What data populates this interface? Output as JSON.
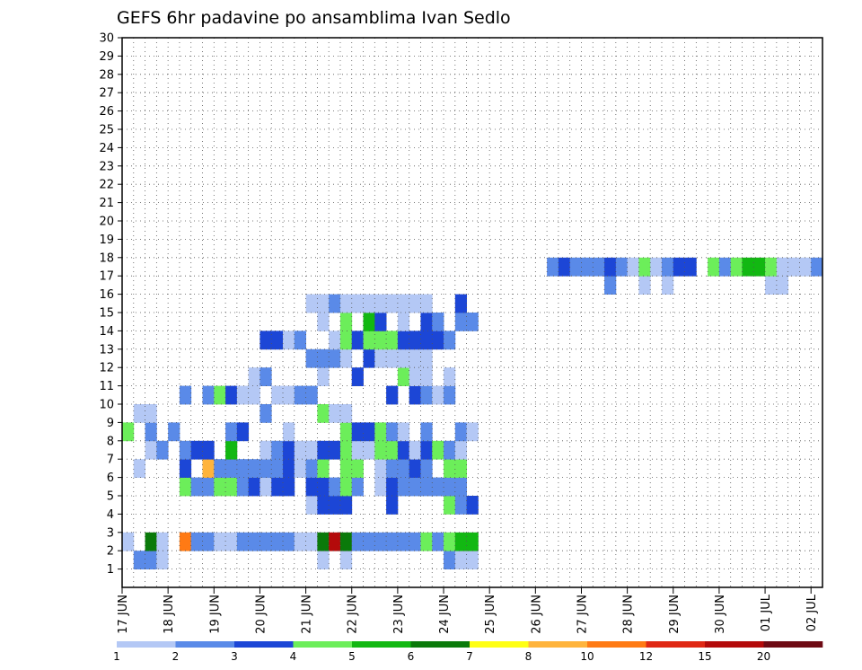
{
  "chart_data": {
    "type": "heatmap",
    "title": "GEFS 6hr padavine po ansamblima Ivan Sedlo",
    "xlabel": "",
    "ylabel": "",
    "x_tick_labels": [
      "17 JUN",
      "18 JUN",
      "19 JUN",
      "20 JUN",
      "21 JUN",
      "22 JUN",
      "23 JUN",
      "24 JUN",
      "25 JUN",
      "26 JUN",
      "27 JUN",
      "28 JUN",
      "29 JUN",
      "30 JUN",
      "01 JUL",
      "02 JUL"
    ],
    "y_tick_labels": [
      "1",
      "2",
      "3",
      "4",
      "5",
      "6",
      "7",
      "8",
      "9",
      "10",
      "11",
      "12",
      "13",
      "14",
      "15",
      "16",
      "17",
      "18",
      "19",
      "20",
      "21",
      "22",
      "23",
      "24",
      "25",
      "26",
      "27",
      "28",
      "29",
      "30"
    ],
    "x_unit": "6hr steps from 17 JUN 00Z",
    "xlim": [
      0,
      61
    ],
    "ylim": [
      0,
      30
    ],
    "grid": true,
    "legend_position": "bottom",
    "legend": {
      "labels": [
        "1",
        "2",
        "3",
        "4",
        "5",
        "6",
        "7",
        "8",
        "10",
        "12",
        "15",
        "20"
      ],
      "colors": [
        "#b4c8f5",
        "#5a8ae8",
        "#1c46d6",
        "#6cee5a",
        "#12b812",
        "#0a7a0a",
        "#ffff14",
        "#ffb43c",
        "#ff7a14",
        "#e02814",
        "#b40a0a",
        "#6e0a14"
      ]
    },
    "cells": [
      [
        1,
        1,
        2
      ],
      [
        1,
        2,
        2
      ],
      [
        1,
        3,
        1
      ],
      [
        1,
        17,
        1
      ],
      [
        1,
        19,
        1
      ],
      [
        1,
        28,
        2
      ],
      [
        1,
        29,
        1
      ],
      [
        1,
        30,
        1
      ],
      [
        2,
        0,
        1
      ],
      [
        2,
        2,
        6
      ],
      [
        2,
        3,
        1
      ],
      [
        2,
        5,
        9
      ],
      [
        2,
        6,
        2
      ],
      [
        2,
        7,
        2
      ],
      [
        2,
        8,
        1
      ],
      [
        2,
        9,
        1
      ],
      [
        2,
        10,
        2
      ],
      [
        2,
        11,
        2
      ],
      [
        2,
        12,
        2
      ],
      [
        2,
        13,
        2
      ],
      [
        2,
        14,
        2
      ],
      [
        2,
        15,
        1
      ],
      [
        2,
        16,
        1
      ],
      [
        2,
        17,
        6
      ],
      [
        2,
        18,
        11
      ],
      [
        2,
        19,
        6
      ],
      [
        2,
        20,
        2
      ],
      [
        2,
        21,
        2
      ],
      [
        2,
        22,
        2
      ],
      [
        2,
        23,
        2
      ],
      [
        2,
        24,
        2
      ],
      [
        2,
        25,
        2
      ],
      [
        2,
        26,
        4
      ],
      [
        2,
        27,
        2
      ],
      [
        2,
        28,
        4
      ],
      [
        2,
        29,
        5
      ],
      [
        2,
        30,
        5
      ],
      [
        4,
        16,
        1
      ],
      [
        4,
        17,
        3
      ],
      [
        4,
        18,
        3
      ],
      [
        4,
        19,
        3
      ],
      [
        4,
        23,
        3
      ],
      [
        4,
        28,
        4
      ],
      [
        4,
        29,
        2
      ],
      [
        4,
        30,
        3
      ],
      [
        5,
        5,
        4
      ],
      [
        5,
        6,
        2
      ],
      [
        5,
        7,
        2
      ],
      [
        5,
        8,
        4
      ],
      [
        5,
        9,
        4
      ],
      [
        5,
        10,
        2
      ],
      [
        5,
        11,
        3
      ],
      [
        5,
        12,
        1
      ],
      [
        5,
        13,
        3
      ],
      [
        5,
        14,
        3
      ],
      [
        5,
        16,
        3
      ],
      [
        5,
        17,
        3
      ],
      [
        5,
        18,
        2
      ],
      [
        5,
        19,
        4
      ],
      [
        5,
        20,
        2
      ],
      [
        5,
        22,
        1
      ],
      [
        5,
        23,
        3
      ],
      [
        5,
        24,
        2
      ],
      [
        5,
        25,
        2
      ],
      [
        5,
        26,
        2
      ],
      [
        5,
        27,
        2
      ],
      [
        5,
        28,
        2
      ],
      [
        5,
        29,
        2
      ],
      [
        6,
        1,
        1
      ],
      [
        6,
        5,
        3
      ],
      [
        6,
        7,
        8
      ],
      [
        6,
        8,
        2
      ],
      [
        6,
        9,
        2
      ],
      [
        6,
        10,
        2
      ],
      [
        6,
        11,
        2
      ],
      [
        6,
        12,
        2
      ],
      [
        6,
        13,
        2
      ],
      [
        6,
        14,
        3
      ],
      [
        6,
        15,
        1
      ],
      [
        6,
        16,
        2
      ],
      [
        6,
        17,
        4
      ],
      [
        6,
        19,
        4
      ],
      [
        6,
        20,
        4
      ],
      [
        6,
        22,
        1
      ],
      [
        6,
        23,
        2
      ],
      [
        6,
        24,
        2
      ],
      [
        6,
        25,
        3
      ],
      [
        6,
        26,
        2
      ],
      [
        6,
        28,
        4
      ],
      [
        6,
        29,
        4
      ],
      [
        7,
        2,
        1
      ],
      [
        7,
        3,
        2
      ],
      [
        7,
        5,
        2
      ],
      [
        7,
        6,
        3
      ],
      [
        7,
        7,
        3
      ],
      [
        7,
        9,
        5
      ],
      [
        7,
        12,
        1
      ],
      [
        7,
        13,
        2
      ],
      [
        7,
        14,
        3
      ],
      [
        7,
        15,
        1
      ],
      [
        7,
        16,
        1
      ],
      [
        7,
        17,
        3
      ],
      [
        7,
        18,
        3
      ],
      [
        7,
        19,
        4
      ],
      [
        7,
        20,
        1
      ],
      [
        7,
        21,
        1
      ],
      [
        7,
        22,
        4
      ],
      [
        7,
        23,
        4
      ],
      [
        7,
        24,
        3
      ],
      [
        7,
        25,
        1
      ],
      [
        7,
        26,
        3
      ],
      [
        7,
        27,
        4
      ],
      [
        7,
        28,
        2
      ],
      [
        7,
        29,
        1
      ],
      [
        8,
        0,
        4
      ],
      [
        8,
        2,
        2
      ],
      [
        8,
        4,
        2
      ],
      [
        8,
        9,
        2
      ],
      [
        8,
        10,
        3
      ],
      [
        8,
        14,
        1
      ],
      [
        8,
        19,
        4
      ],
      [
        8,
        20,
        3
      ],
      [
        8,
        21,
        3
      ],
      [
        8,
        22,
        4
      ],
      [
        8,
        23,
        2
      ],
      [
        8,
        24,
        1
      ],
      [
        8,
        26,
        2
      ],
      [
        8,
        29,
        2
      ],
      [
        8,
        30,
        1
      ],
      [
        9,
        1,
        1
      ],
      [
        9,
        2,
        1
      ],
      [
        9,
        12,
        2
      ],
      [
        9,
        17,
        4
      ],
      [
        9,
        18,
        1
      ],
      [
        9,
        19,
        1
      ],
      [
        10,
        5,
        2
      ],
      [
        10,
        7,
        2
      ],
      [
        10,
        8,
        4
      ],
      [
        10,
        9,
        3
      ],
      [
        10,
        10,
        1
      ],
      [
        10,
        11,
        1
      ],
      [
        10,
        13,
        1
      ],
      [
        10,
        14,
        1
      ],
      [
        10,
        15,
        2
      ],
      [
        10,
        16,
        2
      ],
      [
        10,
        23,
        3
      ],
      [
        10,
        25,
        3
      ],
      [
        10,
        26,
        2
      ],
      [
        10,
        27,
        1
      ],
      [
        10,
        28,
        2
      ],
      [
        11,
        11,
        1
      ],
      [
        11,
        12,
        2
      ],
      [
        11,
        17,
        1
      ],
      [
        11,
        20,
        3
      ],
      [
        11,
        24,
        4
      ],
      [
        11,
        25,
        1
      ],
      [
        11,
        26,
        1
      ],
      [
        11,
        28,
        1
      ],
      [
        12,
        16,
        2
      ],
      [
        12,
        17,
        2
      ],
      [
        12,
        18,
        2
      ],
      [
        12,
        19,
        1
      ],
      [
        12,
        21,
        3
      ],
      [
        12,
        22,
        1
      ],
      [
        12,
        23,
        1
      ],
      [
        12,
        24,
        1
      ],
      [
        12,
        25,
        1
      ],
      [
        12,
        26,
        1
      ],
      [
        13,
        12,
        3
      ],
      [
        13,
        13,
        3
      ],
      [
        13,
        14,
        1
      ],
      [
        13,
        15,
        2
      ],
      [
        13,
        18,
        1
      ],
      [
        13,
        19,
        4
      ],
      [
        13,
        20,
        3
      ],
      [
        13,
        21,
        4
      ],
      [
        13,
        22,
        4
      ],
      [
        13,
        23,
        4
      ],
      [
        13,
        24,
        3
      ],
      [
        13,
        25,
        3
      ],
      [
        13,
        26,
        3
      ],
      [
        13,
        27,
        3
      ],
      [
        13,
        28,
        2
      ],
      [
        14,
        17,
        1
      ],
      [
        14,
        19,
        4
      ],
      [
        14,
        21,
        5
      ],
      [
        14,
        22,
        3
      ],
      [
        14,
        24,
        1
      ],
      [
        14,
        26,
        3
      ],
      [
        14,
        27,
        2
      ],
      [
        14,
        29,
        2
      ],
      [
        14,
        30,
        2
      ],
      [
        15,
        16,
        1
      ],
      [
        15,
        17,
        1
      ],
      [
        15,
        18,
        2
      ],
      [
        15,
        19,
        1
      ],
      [
        15,
        20,
        1
      ],
      [
        15,
        21,
        1
      ],
      [
        15,
        22,
        1
      ],
      [
        15,
        23,
        1
      ],
      [
        15,
        24,
        1
      ],
      [
        15,
        25,
        1
      ],
      [
        15,
        26,
        1
      ],
      [
        15,
        29,
        3
      ],
      [
        16,
        42,
        2
      ],
      [
        16,
        45,
        1
      ],
      [
        16,
        47,
        1
      ],
      [
        16,
        56,
        1
      ],
      [
        16,
        57,
        1
      ],
      [
        17,
        37,
        2
      ],
      [
        17,
        38,
        3
      ],
      [
        17,
        39,
        2
      ],
      [
        17,
        40,
        2
      ],
      [
        17,
        41,
        2
      ],
      [
        17,
        42,
        3
      ],
      [
        17,
        43,
        2
      ],
      [
        17,
        44,
        1
      ],
      [
        17,
        45,
        4
      ],
      [
        17,
        46,
        1
      ],
      [
        17,
        47,
        2
      ],
      [
        17,
        48,
        3
      ],
      [
        17,
        49,
        3
      ],
      [
        17,
        51,
        4
      ],
      [
        17,
        52,
        2
      ],
      [
        17,
        53,
        4
      ],
      [
        17,
        54,
        5
      ],
      [
        17,
        55,
        5
      ],
      [
        17,
        56,
        4
      ],
      [
        17,
        57,
        1
      ],
      [
        17,
        58,
        1
      ],
      [
        17,
        59,
        1
      ],
      [
        17,
        60,
        2
      ]
    ]
  }
}
